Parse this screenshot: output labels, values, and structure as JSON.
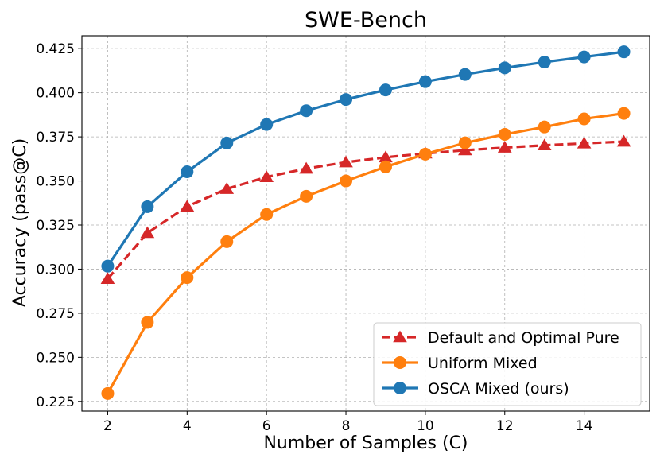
{
  "chart_data": {
    "type": "line",
    "title": "SWE-Bench",
    "xlabel": "Number of Samples (C)",
    "ylabel": "Accuracy (pass@C)",
    "xlim": [
      1.35,
      15.65
    ],
    "ylim": [
      0.2195,
      0.4323
    ],
    "xticks": [
      2,
      4,
      6,
      8,
      10,
      12,
      14
    ],
    "yticks": [
      0.225,
      0.25,
      0.275,
      0.3,
      0.325,
      0.35,
      0.375,
      0.4,
      0.425
    ],
    "ytick_labels": [
      "0.225",
      "0.250",
      "0.275",
      "0.300",
      "0.325",
      "0.350",
      "0.375",
      "0.400",
      "0.425"
    ],
    "grid": true,
    "legend_position": "lower-right",
    "x": [
      2,
      3,
      4,
      5,
      6,
      7,
      8,
      9,
      10,
      11,
      12,
      13,
      14,
      15
    ],
    "series": [
      {
        "name": "Default and Optimal Pure",
        "color": "#d62728",
        "marker": "triangle",
        "linestyle": "dashed",
        "values": [
          0.2945,
          0.3205,
          0.3355,
          0.3455,
          0.3522,
          0.357,
          0.3606,
          0.3634,
          0.3656,
          0.3674,
          0.3689,
          0.3702,
          0.3713,
          0.3723
        ]
      },
      {
        "name": "Uniform Mixed",
        "color": "#ff7f0e",
        "marker": "circle",
        "linestyle": "solid",
        "values": [
          0.2295,
          0.2698,
          0.2952,
          0.3156,
          0.331,
          0.3413,
          0.35,
          0.358,
          0.3652,
          0.3716,
          0.3764,
          0.3806,
          0.3852,
          0.3883
        ]
      },
      {
        "name": "OSCA Mixed (ours)",
        "color": "#1f77b4",
        "marker": "circle",
        "linestyle": "solid",
        "values": [
          0.3017,
          0.3354,
          0.3552,
          0.3715,
          0.382,
          0.3898,
          0.3962,
          0.4016,
          0.4063,
          0.4104,
          0.4141,
          0.4174,
          0.4203,
          0.4232
        ]
      }
    ]
  }
}
